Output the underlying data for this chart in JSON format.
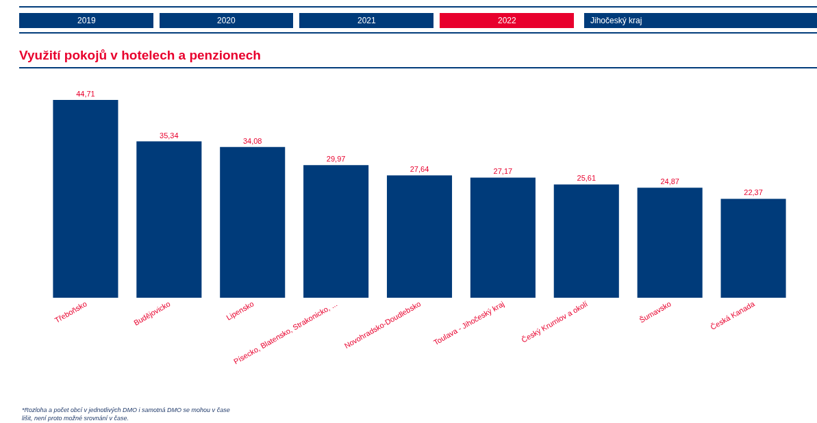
{
  "chart_data": {
    "type": "bar",
    "title": "Využití pokojů v hotelech a penzionech",
    "categories": [
      "Třeboňsko",
      "Budějovicko",
      "Lipensko",
      "Písecko, Blatensko, Strakonicko, ...",
      "Novohradsko-Doudlebsko",
      "Toulava - Jihočeský kraj",
      "Český Krumlov a okolí",
      "Šumavsko",
      "Česká Kanada"
    ],
    "values": [
      44.71,
      35.34,
      34.08,
      29.97,
      27.64,
      27.17,
      25.61,
      24.87,
      22.37
    ],
    "value_labels": [
      "44,71",
      "35,34",
      "34,08",
      "29,97",
      "27,64",
      "27,17",
      "25,61",
      "24,87",
      "22,37"
    ],
    "color": "#003b7a",
    "annotations": [
      "*Rozloha a počet obcí v jednotlivých DMO i samotná DMO se mohou v čase\nlišit, není proto možné srovnání v čase.",
      "2019",
      "2020",
      "2021",
      "2022",
      "Jihočeský kraj"
    ]
  }
}
